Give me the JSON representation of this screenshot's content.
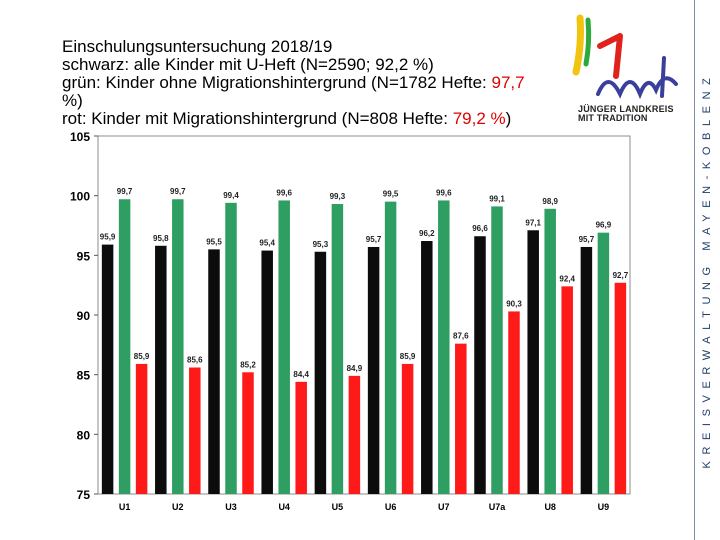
{
  "header": {
    "line1": "Einschulungsuntersuchung 2018/19",
    "line2": "schwarz: alle Kinder mit U-Heft (N=2590; 92,2 %)",
    "line3_prefix": "grün: Kinder ohne Migrationshintergrund (N=1782 Hefte: ",
    "line3_highlight": "97,7",
    "line3_cont": "%)",
    "line4_prefix": "rot: Kinder mit Migrationshintergrund (N=808 Hefte: ",
    "line4_highlight": "79,2 %",
    "line4_suffix": ")"
  },
  "logo": {
    "line1": "JÜNGER LANDKREIS",
    "line2": "MIT TRADITION"
  },
  "side_label": "KREISVERWALTUNG MAYEN-KOBLENZ",
  "colors": {
    "black_series": "#0c0c0c",
    "green_series": "#2e9e62",
    "red_series": "#ff1a1a",
    "highlight": "#e10000"
  },
  "chart_data": {
    "type": "bar",
    "categories": [
      "U1",
      "U2",
      "U3",
      "U4",
      "U5",
      "U6",
      "U7",
      "U7a",
      "U8",
      "U9"
    ],
    "series": [
      {
        "name": "alle Kinder mit U-Heft",
        "values": [
          95.9,
          95.8,
          95.5,
          95.4,
          95.3,
          95.7,
          96.2,
          96.6,
          97.1,
          95.7
        ]
      },
      {
        "name": "Kinder ohne Migrationshintergrund",
        "values": [
          99.7,
          99.7,
          99.4,
          99.6,
          99.3,
          99.5,
          99.6,
          99.1,
          98.9,
          96.9
        ]
      },
      {
        "name": "Kinder mit Migrationshintergrund",
        "values": [
          85.9,
          85.6,
          85.2,
          84.4,
          84.9,
          85.9,
          87.6,
          90.3,
          92.4,
          92.7
        ]
      }
    ],
    "labels": [
      [
        "95,9",
        "95,8",
        "95,5",
        "95,4",
        "95,3",
        "95,7",
        "96,2",
        "96,6",
        "97,1",
        "95,7"
      ],
      [
        "99,7",
        "99,7",
        "99,4",
        "99,6",
        "99,3",
        "99,5",
        "99,6",
        "99,1",
        "98,9",
        "96,9"
      ],
      [
        "85,9",
        "85,6",
        "85,2",
        "84,4",
        "84,9",
        "85,9",
        "87,6",
        "90,3",
        "92,4",
        "92,7"
      ]
    ],
    "ylim": [
      75,
      105
    ],
    "yticks": [
      75,
      80,
      85,
      90,
      95,
      100,
      105
    ],
    "grid": false,
    "legend": "none"
  }
}
